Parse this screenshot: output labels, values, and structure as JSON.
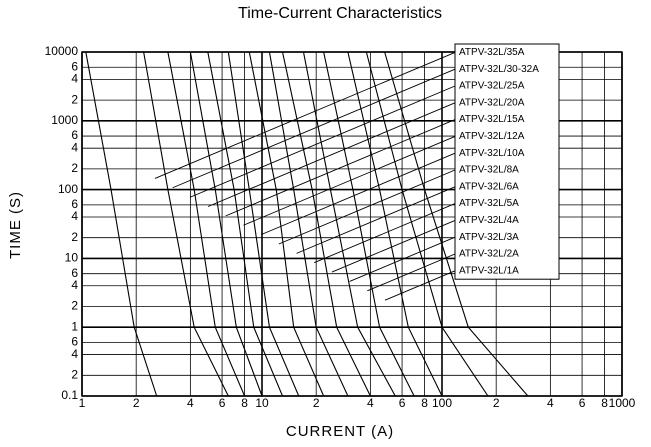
{
  "chart_data": {
    "type": "line",
    "title": "Time-Current Characteristics",
    "x_label": "CURRENT (A)",
    "y_label": "TIME (S)",
    "xscale": "log",
    "yscale": "log",
    "grid": true,
    "xlim": [
      1,
      1000
    ],
    "ylim": [
      0.1,
      10000
    ],
    "xticks": [
      1,
      2,
      4,
      6,
      8,
      10,
      {
        "value": 20,
        "label": "2"
      },
      {
        "value": 40,
        "label": "4"
      },
      {
        "value": 60,
        "label": "6"
      },
      {
        "value": 80,
        "label": "8"
      },
      100,
      {
        "value": 200,
        "label": "2"
      },
      {
        "value": 400,
        "label": "4"
      },
      {
        "value": 600,
        "label": "6"
      },
      {
        "value": 800,
        "label": "8"
      },
      1000
    ],
    "yticks": [
      10000,
      {
        "value": 6000,
        "label": "6"
      },
      {
        "value": 4000,
        "label": "4"
      },
      {
        "value": 2000,
        "label": "2"
      },
      1000,
      {
        "value": 600,
        "label": "6"
      },
      {
        "value": 400,
        "label": "4"
      },
      {
        "value": 200,
        "label": "2"
      },
      100,
      {
        "value": 60,
        "label": "6"
      },
      {
        "value": 40,
        "label": "4"
      },
      {
        "value": 20,
        "label": "2"
      },
      10,
      6,
      4,
      2,
      1,
      {
        "value": 0.6,
        "label": "6"
      },
      {
        "value": 0.4,
        "label": "4"
      },
      {
        "value": 0.2,
        "label": "2"
      },
      0.1
    ],
    "series": [
      {
        "name": "ATPV-32L/35A",
        "color": "#000000",
        "x": [
          48,
          80,
          140,
          300
        ],
        "values": [
          10000,
          100,
          1,
          0.1
        ]
      },
      {
        "name": "ATPV-32L/30-32A",
        "color": "#000000",
        "x": [
          38,
          60,
          100,
          180
        ],
        "values": [
          10000,
          100,
          1,
          0.1
        ]
      },
      {
        "name": "ATPV-32L/25A",
        "color": "#000000",
        "x": [
          30,
          45,
          65,
          100
        ],
        "values": [
          10000,
          100,
          1,
          0.1
        ]
      },
      {
        "name": "ATPV-32L/20A",
        "color": "#000000",
        "x": [
          22,
          32,
          45,
          70
        ],
        "values": [
          10000,
          100,
          1,
          0.1
        ]
      },
      {
        "name": "ATPV-32L/15A",
        "color": "#000000",
        "x": [
          17,
          24,
          34,
          55
        ],
        "values": [
          10000,
          100,
          1,
          0.1
        ]
      },
      {
        "name": "ATPV-32L/12A",
        "color": "#000000",
        "x": [
          13,
          19,
          26,
          40
        ],
        "values": [
          10000,
          100,
          1,
          0.1
        ]
      },
      {
        "name": "ATPV-32L/10A",
        "color": "#000000",
        "x": [
          11,
          15,
          20,
          30
        ],
        "values": [
          10000,
          100,
          1,
          0.1
        ]
      },
      {
        "name": "ATPV-32L/8A",
        "color": "#000000",
        "x": [
          8.5,
          12,
          15,
          22
        ],
        "values": [
          10000,
          100,
          1,
          0.1
        ]
      },
      {
        "name": "ATPV-32L/6A",
        "color": "#000000",
        "x": [
          6.5,
          8.5,
          11,
          16
        ],
        "values": [
          10000,
          100,
          1,
          0.1
        ]
      },
      {
        "name": "ATPV-32L/5A",
        "color": "#000000",
        "x": [
          5,
          7,
          9,
          13
        ],
        "values": [
          10000,
          100,
          1,
          0.1
        ]
      },
      {
        "name": "ATPV-32L/4A",
        "color": "#000000",
        "x": [
          4,
          5.5,
          7.2,
          10
        ],
        "values": [
          10000,
          100,
          1,
          0.1
        ]
      },
      {
        "name": "ATPV-32L/3A",
        "color": "#000000",
        "x": [
          3,
          4.2,
          5.5,
          8
        ],
        "values": [
          10000,
          100,
          1,
          0.1
        ]
      },
      {
        "name": "ATPV-32L/2A",
        "color": "#000000",
        "x": [
          2.2,
          3,
          4.2,
          6.5
        ],
        "values": [
          10000,
          100,
          1,
          0.1
        ]
      },
      {
        "name": "ATPV-32L/1A",
        "color": "#000000",
        "x": [
          1.05,
          1.45,
          1.95,
          2.6
        ],
        "values": [
          10000,
          100,
          1,
          0.1
        ]
      }
    ]
  }
}
